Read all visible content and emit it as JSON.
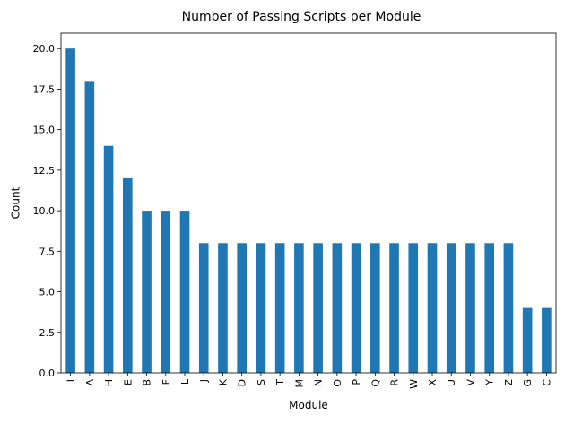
{
  "chart_data": {
    "type": "bar",
    "title": "Number of Passing Scripts per Module",
    "xlabel": "Module",
    "ylabel": "Count",
    "categories": [
      "I",
      "A",
      "H",
      "E",
      "B",
      "F",
      "L",
      "J",
      "K",
      "D",
      "S",
      "T",
      "M",
      "N",
      "O",
      "P",
      "Q",
      "R",
      "W",
      "X",
      "U",
      "V",
      "Y",
      "Z",
      "G",
      "C"
    ],
    "values": [
      20,
      18,
      14,
      12,
      10,
      10,
      10,
      8,
      8,
      8,
      8,
      8,
      8,
      8,
      8,
      8,
      8,
      8,
      8,
      8,
      8,
      8,
      8,
      8,
      4,
      4
    ],
    "ylim": [
      0,
      20.95
    ],
    "yticks": [
      0.0,
      2.5,
      5.0,
      7.5,
      10.0,
      12.5,
      15.0,
      17.5,
      20.0
    ],
    "ytick_labels": [
      "0.0",
      "2.5",
      "5.0",
      "7.5",
      "10.0",
      "12.5",
      "15.0",
      "17.5",
      "20.0"
    ],
    "grid": false,
    "legend": "none",
    "colors": {
      "bar": "#1f77b4",
      "axis": "#000000"
    }
  }
}
